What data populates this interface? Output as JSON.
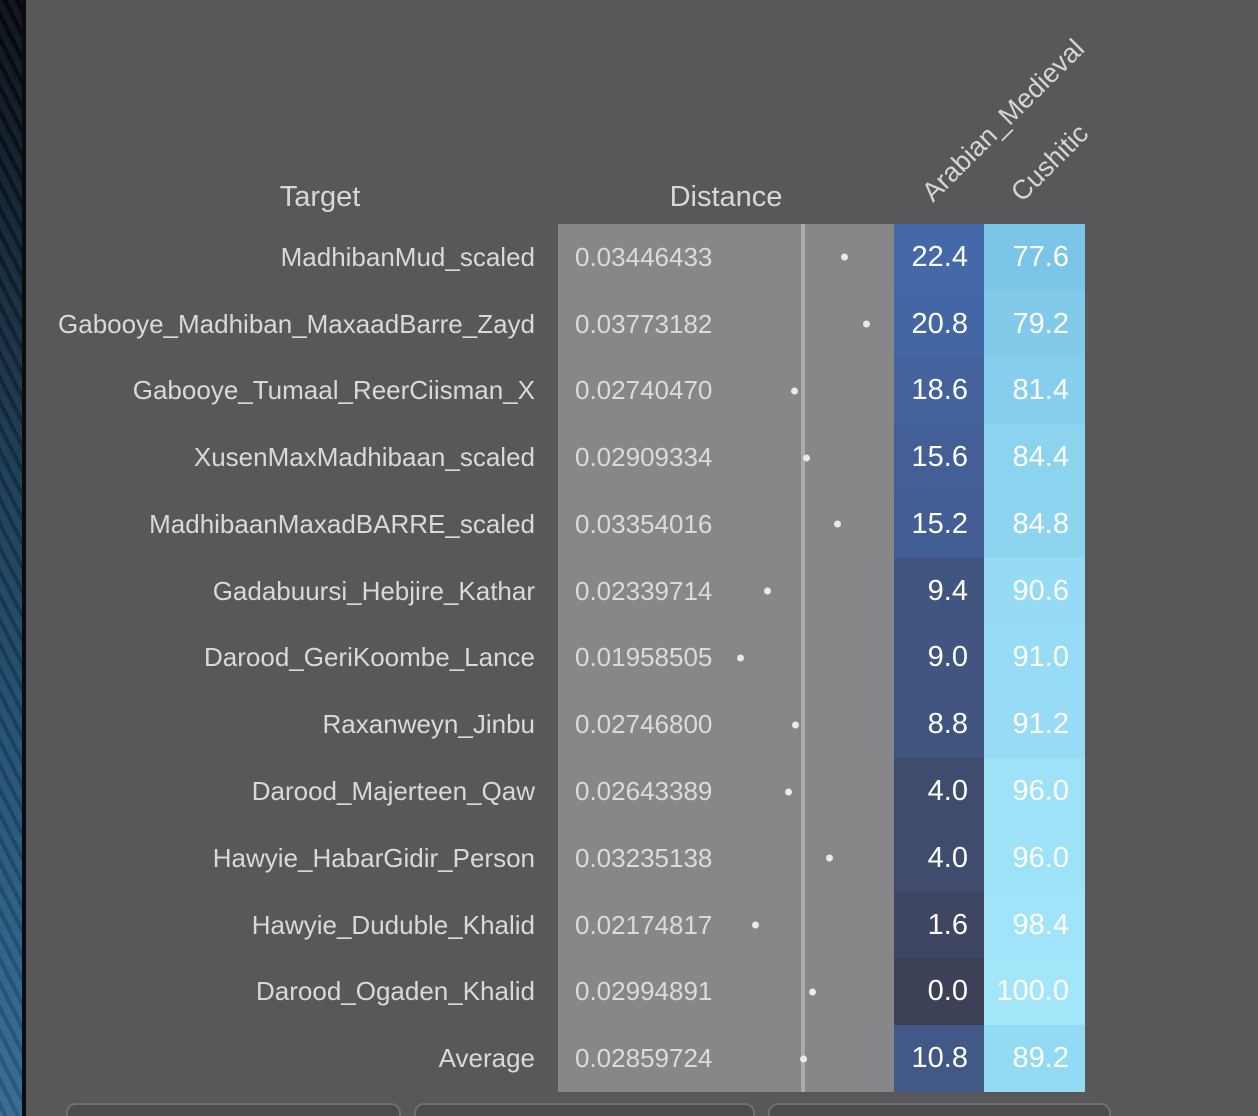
{
  "headers": {
    "target": "Target",
    "distance": "Distance"
  },
  "ancestry_columns": [
    {
      "label": "Arabian_Medieval",
      "scale": {
        "v0": 0.0,
        "c0": "#3D4157",
        "v1": 22.4,
        "c1": "#4568A8"
      }
    },
    {
      "label": "Cushitic",
      "scale": {
        "v0": 77.6,
        "c0": "#7BC6E8",
        "v1": 100.0,
        "c1": "#A3E6FA"
      }
    }
  ],
  "rows": [
    {
      "target": "MadhibanMud_scaled",
      "distance": "0.03446433",
      "values": [
        22.4,
        77.6
      ]
    },
    {
      "target": "Gabooye_Madhiban_MaxaadBarre_Zayd",
      "distance": "0.03773182",
      "values": [
        20.8,
        79.2
      ]
    },
    {
      "target": "Gabooye_Tumaal_ReerCiisman_X",
      "distance": "0.02740470",
      "values": [
        18.6,
        81.4
      ]
    },
    {
      "target": "XusenMaxMadhibaan_scaled",
      "distance": "0.02909334",
      "values": [
        15.6,
        84.4
      ]
    },
    {
      "target": "MadhibaanMaxadBARRE_scaled",
      "distance": "0.03354016",
      "values": [
        15.2,
        84.8
      ]
    },
    {
      "target": "Gadabuursi_Hebjire_Kathar",
      "distance": "0.02339714",
      "values": [
        9.4,
        90.6
      ]
    },
    {
      "target": "Darood_GeriKoombe_Lance",
      "distance": "0.01958505",
      "values": [
        9.0,
        91.0
      ]
    },
    {
      "target": "Raxanweyn_Jinbu",
      "distance": "0.02746800",
      "values": [
        8.8,
        91.2
      ]
    },
    {
      "target": "Darood_Majerteen_Qaw",
      "distance": "0.02643389",
      "values": [
        4.0,
        96.0
      ]
    },
    {
      "target": "Hawyie_HabarGidir_Person",
      "distance": "0.03235138",
      "values": [
        4.0,
        96.0
      ]
    },
    {
      "target": "Hawyie_Duduble_Khalid",
      "distance": "0.02174817",
      "values": [
        1.6,
        98.4
      ]
    },
    {
      "target": "Darood_Ogaden_Khalid",
      "distance": "0.02994891",
      "values": [
        0.0,
        100.0
      ]
    },
    {
      "target": "Average",
      "distance": "0.02859724",
      "values": [
        10.8,
        89.2
      ]
    }
  ],
  "colors": {
    "window_background": "#58585A",
    "distance_track": "#87878A",
    "average_marker": "#ABABAD",
    "distance_dot": "#EAEAEA",
    "label_text": "#D9D9DA",
    "value_text": "#FFFFFF"
  }
}
